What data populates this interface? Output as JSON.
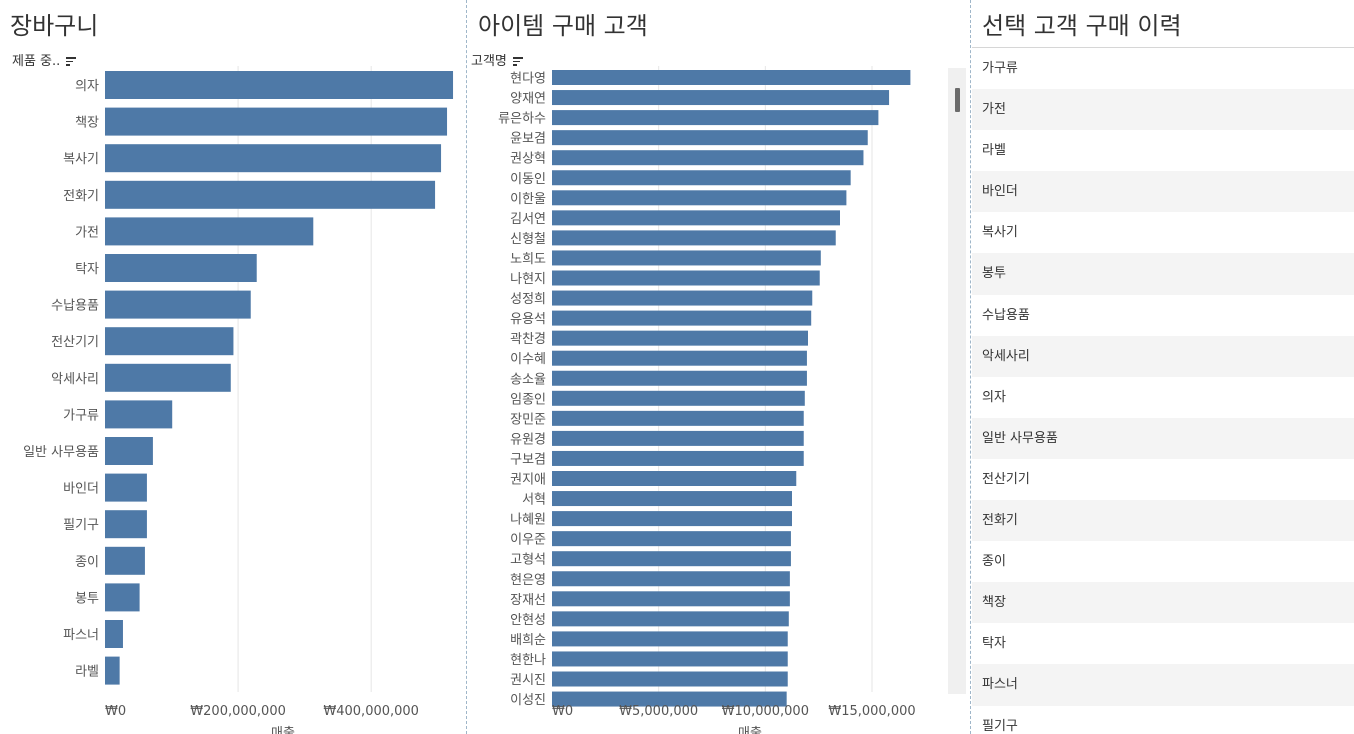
{
  "colors": {
    "bar": "#4e79a7",
    "grid": "#e6e6e6",
    "divider": "#9fb6c9"
  },
  "panel1": {
    "title": "장바구니",
    "field_label": "제품 중.."
  },
  "panel2": {
    "title": "아이템 구매 고객",
    "field_label": "고객명"
  },
  "panel3": {
    "title": "선택 고객 구매 이력",
    "items": [
      "가구류",
      "가전",
      "라벨",
      "바인더",
      "복사기",
      "봉투",
      "수납용품",
      "악세사리",
      "의자",
      "일반 사무용품",
      "전산기기",
      "전화기",
      "종이",
      "책장",
      "탁자",
      "파스너",
      "필기구"
    ]
  },
  "chart_data": [
    {
      "type": "bar",
      "orientation": "horizontal",
      "title": "장바구니",
      "categories": [
        "의자",
        "책장",
        "복사기",
        "전화기",
        "가전",
        "탁자",
        "수납용품",
        "전산기기",
        "악세사리",
        "가구류",
        "일반 사무용품",
        "바인더",
        "필기구",
        "종이",
        "봉투",
        "파스너",
        "라벨"
      ],
      "values": [
        523000000,
        514000000,
        505000000,
        496000000,
        313000000,
        228000000,
        219000000,
        193000000,
        189000000,
        101000000,
        72000000,
        63000000,
        63000000,
        60000000,
        52000000,
        27000000,
        22000000
      ],
      "xlabel": "매출",
      "ylabel": "제품 중..",
      "xlim": [
        0,
        550000000
      ],
      "ticks": [
        0,
        200000000,
        400000000
      ],
      "tick_labels": [
        "₩0",
        "₩200,000,000",
        "₩400,000,000"
      ]
    },
    {
      "type": "bar",
      "orientation": "horizontal",
      "title": "아이템 구매 고객",
      "categories": [
        "현다영",
        "양재연",
        "류은하수",
        "윤보겸",
        "권상혁",
        "이동인",
        "이한울",
        "김서연",
        "신형철",
        "노희도",
        "나현지",
        "성정희",
        "유용석",
        "곽찬경",
        "이수혜",
        "송소율",
        "임종인",
        "장민준",
        "유원경",
        "구보겸",
        "권지애",
        "서혁",
        "나혜원",
        "이우준",
        "고형석",
        "현은영",
        "장재선",
        "안현성",
        "배희순",
        "현한나",
        "권시진",
        "이성진"
      ],
      "values": [
        16800000,
        15800000,
        15300000,
        14800000,
        14600000,
        14000000,
        13800000,
        13500000,
        13300000,
        12600000,
        12550000,
        12200000,
        12150000,
        12000000,
        11950000,
        11950000,
        11850000,
        11800000,
        11800000,
        11800000,
        11450000,
        11250000,
        11250000,
        11200000,
        11200000,
        11150000,
        11150000,
        11100000,
        11050000,
        11050000,
        11050000,
        11000000
      ],
      "xlabel": "매출",
      "ylabel": "고객명",
      "xlim": [
        0,
        18000000
      ],
      "ticks": [
        0,
        5000000,
        10000000,
        15000000
      ],
      "tick_labels": [
        "₩0",
        "₩5,000,000",
        "₩10,000,000",
        "₩15,000,000"
      ]
    }
  ]
}
